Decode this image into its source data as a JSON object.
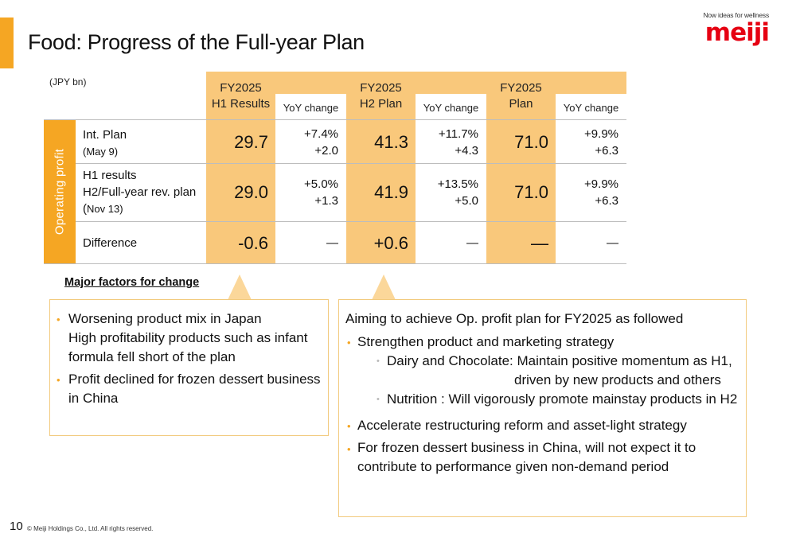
{
  "title": "Food: Progress of the Full-year Plan",
  "logo": {
    "tagline": "Now ideas for wellness",
    "wordmark": "meiji"
  },
  "unit": "(JPY bn)",
  "headers": [
    {
      "line1": "FY2025",
      "line2": "H1 Results",
      "yoy": "YoY change"
    },
    {
      "line1": "FY2025",
      "line2": "H2 Plan",
      "yoy": "YoY change"
    },
    {
      "line1": "FY2025",
      "line2": "Plan",
      "yoy": "YoY change"
    }
  ],
  "sidebar_label": "Operating profit",
  "rows": [
    {
      "label1": "Int. Plan",
      "label2": "(May 9)",
      "h1": "29.7",
      "h1_pct": "+7.4%",
      "h1_abs": "+2.0",
      "h2": "41.3",
      "h2_pct": "+11.7%",
      "h2_abs": "+4.3",
      "fy": "71.0",
      "fy_pct": "+9.9%",
      "fy_abs": "+6.3"
    },
    {
      "label1": "H1 results",
      "label2": "H2/Full-year rev. plan",
      "label3_paren": "(",
      "label3": "Nov 13)",
      "h1": "29.0",
      "h1_pct": "+5.0%",
      "h1_abs": "+1.3",
      "h2": "41.9",
      "h2_pct": "+13.5%",
      "h2_abs": "+5.0",
      "fy": "71.0",
      "fy_pct": "+9.9%",
      "fy_abs": "+6.3"
    },
    {
      "label1": "Difference",
      "h1": "-0.6",
      "h1_yoy": "—",
      "h2": "+0.6",
      "h2_yoy": "—",
      "fy": "—",
      "fy_yoy": "—"
    }
  ],
  "factors_title": "Major factors for change",
  "left_box": {
    "b1_line1": "Worsening product mix in Japan",
    "b1_line2": "High profitability products such as infant",
    "b1_line3": "formula fell short of the plan",
    "b2_line1": "Profit declined for frozen dessert business",
    "b2_line2": "in China"
  },
  "right_box": {
    "intro": "Aiming to achieve Op. profit plan for FY2025 as followed",
    "b1": "Strengthen product and marketing strategy",
    "s1_line1": "Dairy and Chocolate: Maintain positive momentum as H1,",
    "s1_line2": "driven by new products and others",
    "s2": "Nutrition : Will vigorously promote mainstay products in H2",
    "b2": "Accelerate restructuring reform and asset-light strategy",
    "b3_line1": "For frozen dessert business in China, will not expect it to",
    "b3_line2": "contribute to performance given non-demand period"
  },
  "footer": {
    "page": "10",
    "copyright": "© Meiji Holdings Co., Ltd. All rights reserved."
  },
  "colors": {
    "accent": "#f5a623",
    "column": "#f9c87b",
    "brand": "#e60012"
  }
}
